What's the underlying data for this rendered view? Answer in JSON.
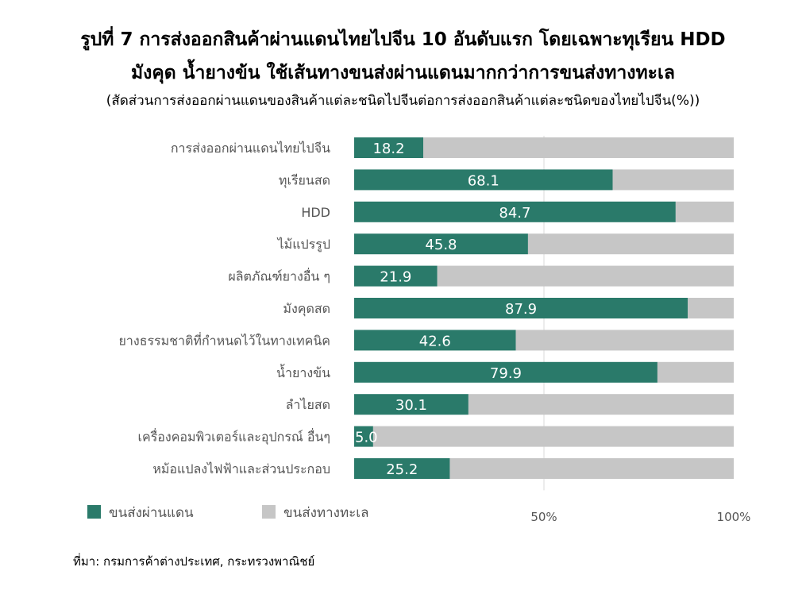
{
  "title_line1": "รูปที่ 7 การส่งออกสินค้าผ่านแดนไทยไปจีน 10 อันดับแรก โดยเฉพาะทุเรียน HDD",
  "title_line2": "มังคุด น้ำยางข้น ใช้เส้นทางขนส่งผ่านแดนมากกว่าการขนส่งทางทะเล",
  "subtitle": "(สัดส่วนการส่งออกผ่านแดนของสินค้าแต่ละชนิดไปจีนต่อการส่งออกสินค้าแต่ละชนิดของไทยไปจีน(%))",
  "source": "ที่มา: กรมการค้าต่างประเทศ, กระทรวงพาณิชย์",
  "chart_data": {
    "type": "bar",
    "orientation": "horizontal",
    "stacked": "percent",
    "categories": [
      "การส่งออกผ่านแดนไทยไปจีน",
      "ทุเรียนสด",
      "HDD",
      "ไม้แปรรูป",
      "ผลิตภัณฑ์ยางอื่น ๆ",
      "มังคุดสด",
      "ยางธรรมชาติที่กำหนดไว้ในทางเทคนิค",
      "น้ำยางข้น",
      "ลำไยสด",
      "เครื่องคอมพิวเตอร์และอุปกรณ์ อื่นๆ",
      "หม้อแปลงไฟฟ้าและส่วนประกอบ"
    ],
    "series": [
      {
        "name": "ขนส่งผ่านแดน",
        "color": "#2a7a6a",
        "values": [
          18.2,
          68.1,
          84.7,
          45.8,
          21.9,
          87.9,
          42.6,
          79.9,
          30.1,
          5.0,
          25.2
        ]
      },
      {
        "name": "ขนส่งทางทะเล",
        "color": "#c6c6c6",
        "values": [
          81.8,
          31.9,
          15.3,
          54.2,
          78.1,
          12.1,
          57.4,
          20.1,
          69.9,
          95.0,
          74.8
        ]
      }
    ],
    "data_labels": [
      "18.2",
      "68.1",
      "84.7",
      "45.8",
      "21.9",
      "87.9",
      "42.6",
      "79.9",
      "30.1",
      "5.0",
      "25.2"
    ],
    "x_ticks": [
      "50%",
      "100%"
    ],
    "xlim": [
      0,
      100
    ],
    "gridline_at": 50,
    "legend_position": "bottom-left",
    "label_color": "#ffffff"
  }
}
